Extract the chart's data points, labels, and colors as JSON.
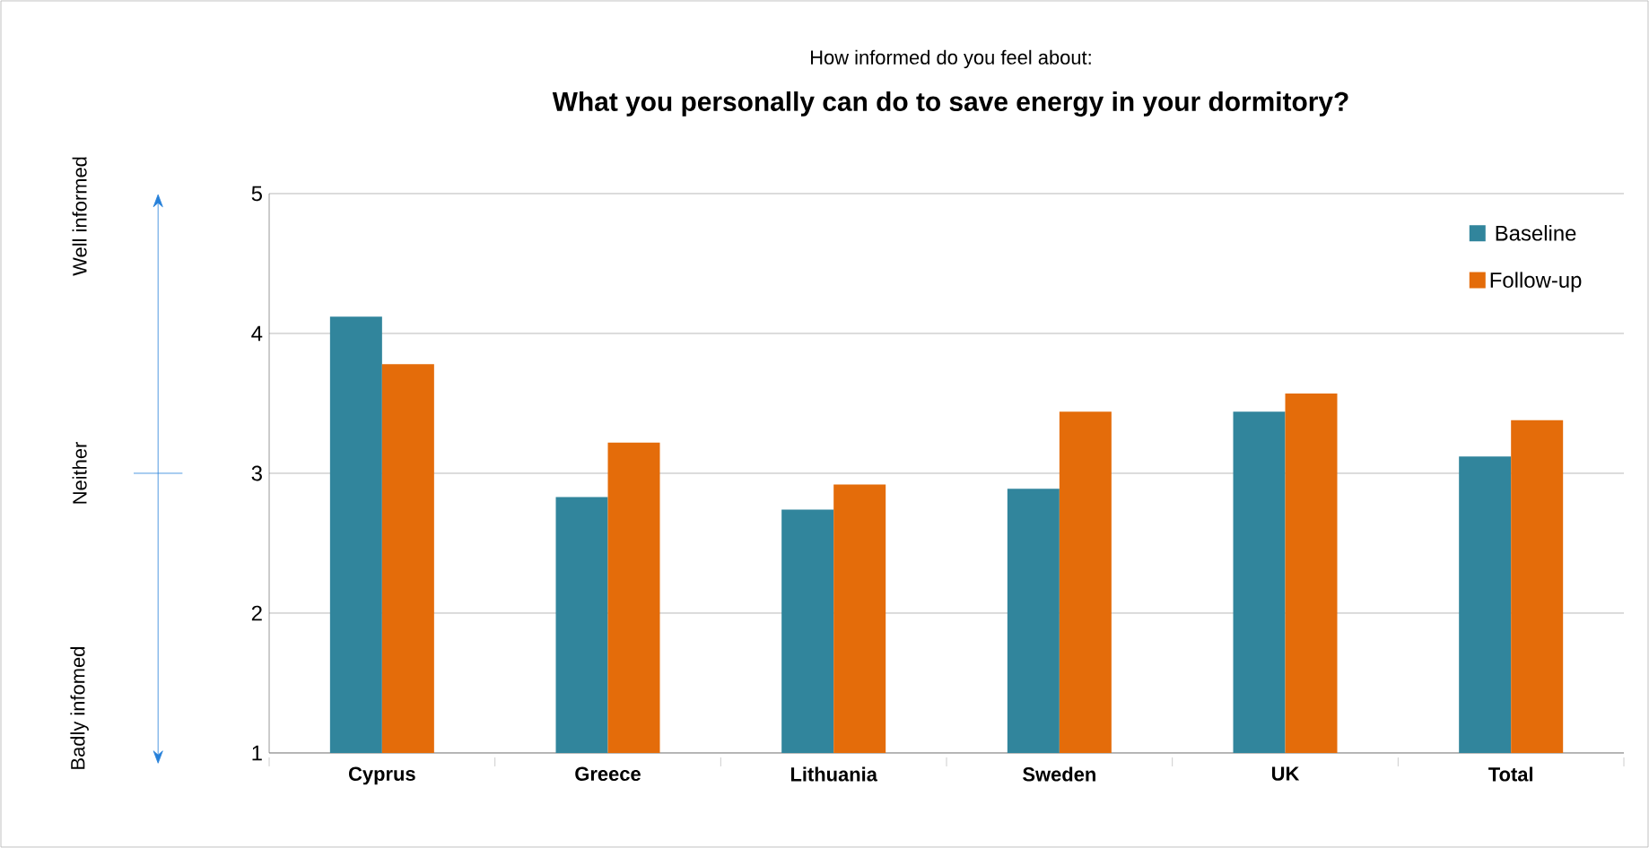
{
  "chart_data": {
    "type": "bar",
    "subtitle": "How informed do you feel about:",
    "title": "What you personally can do to save energy in your dormitory?",
    "categories": [
      "Cyprus",
      "Greece",
      "Lithuania",
      "Sweden",
      "UK",
      "Total"
    ],
    "series": [
      {
        "name": "Baseline",
        "color": "#31859c",
        "values": [
          4.12,
          2.83,
          2.74,
          2.89,
          3.44,
          3.12
        ]
      },
      {
        "name": "Follow-up",
        "color": "#e46c0a",
        "values": [
          3.78,
          3.22,
          2.92,
          3.44,
          3.57,
          3.38
        ]
      }
    ],
    "ylim": [
      1,
      5
    ],
    "yticks": [
      1,
      2,
      3,
      4,
      5
    ],
    "grid": "y",
    "legend": "top right",
    "annotations": [
      "Well informed",
      "Neither",
      "Badly infomed"
    ]
  }
}
